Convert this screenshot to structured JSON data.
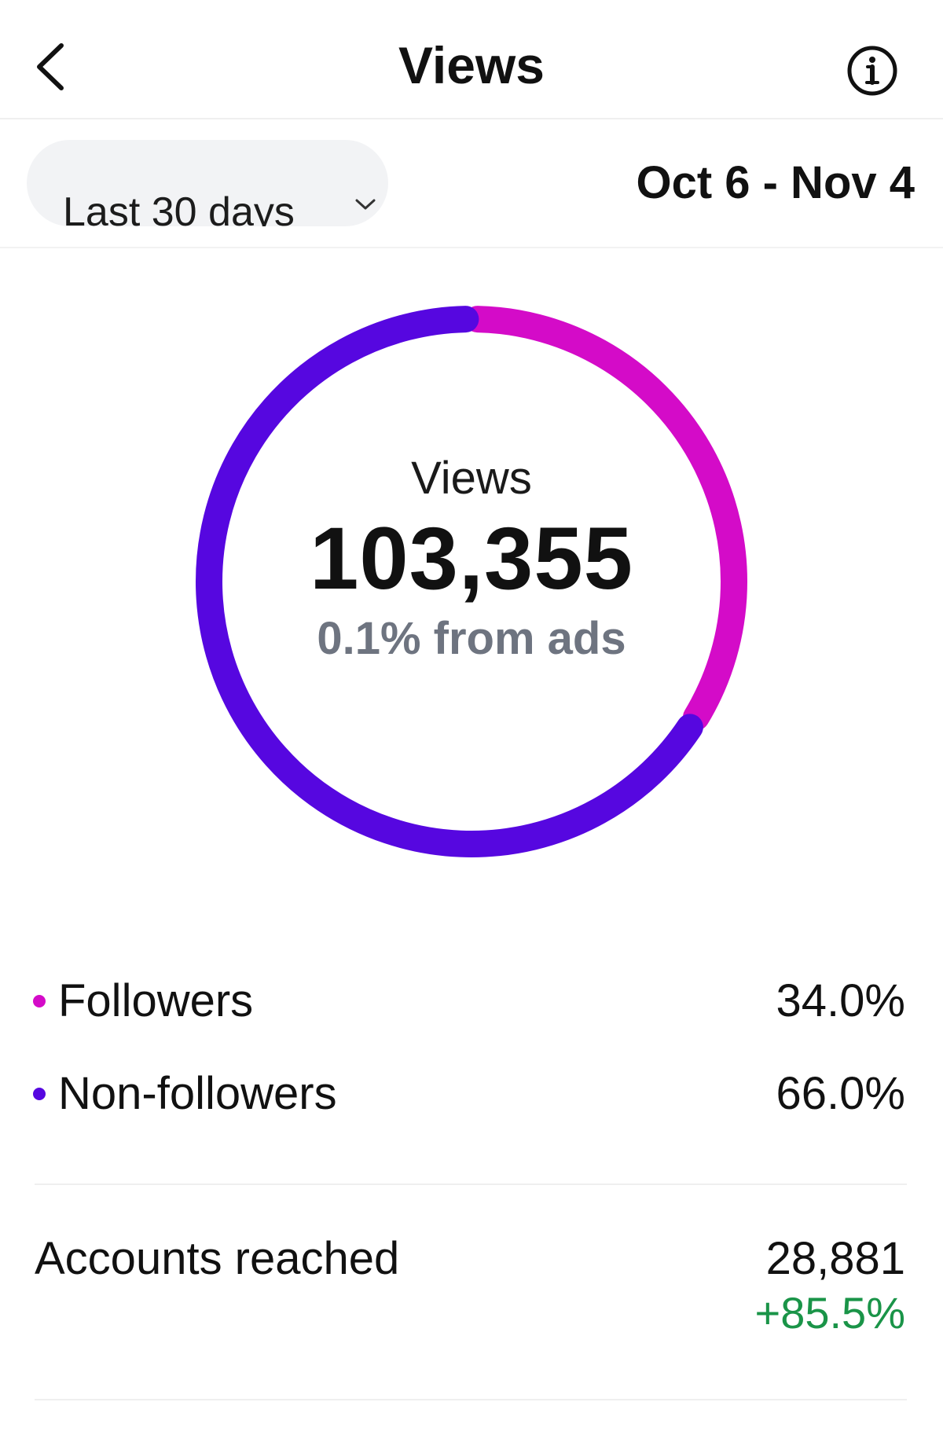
{
  "header": {
    "title": "Views",
    "back_icon": "chevron-left-icon",
    "info_icon": "info-icon"
  },
  "filter": {
    "range_label": "Last 30 days",
    "chevron_icon": "chevron-down-icon",
    "date_range": "Oct 6 - Nov 4"
  },
  "summary": {
    "label": "Views",
    "value": "103,355",
    "ads_note": "0.1% from ads"
  },
  "legend": [
    {
      "label": "Followers",
      "value": "34.0%",
      "color": "#d40bc8"
    },
    {
      "label": "Non-followers",
      "value": "66.0%",
      "color": "#5607e0"
    }
  ],
  "chart_data": {
    "type": "pie",
    "categories": [
      "Followers",
      "Non-followers"
    ],
    "values": [
      34.0,
      66.0
    ],
    "colors": [
      "#d40bc8",
      "#5607e0"
    ],
    "title": "Views",
    "center_value": "103,355",
    "center_note": "0.1% from ads"
  },
  "metrics": {
    "accounts_reached": {
      "label": "Accounts reached",
      "value": "28,881",
      "change": "+85.5%",
      "change_color": "#1a9448"
    }
  },
  "colors": {
    "text": "#111111",
    "muted": "#6e7480",
    "pill": "#f2f3f5"
  }
}
